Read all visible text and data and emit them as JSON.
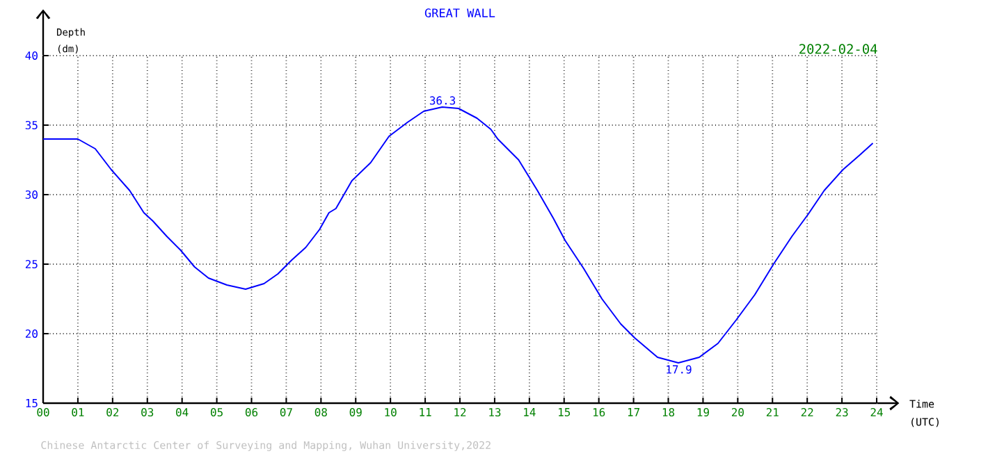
{
  "chart_data": {
    "type": "line",
    "title": "GREAT WALL",
    "xlabel": "Time (UTC)",
    "ylabel": "Depth (dm)",
    "x": [
      0,
      0.5,
      1,
      1.5,
      1.96,
      2.49,
      2.9,
      3.16,
      3.56,
      3.96,
      4.36,
      4.76,
      5.29,
      5.83,
      6.36,
      6.76,
      7.16,
      7.56,
      7.96,
      8.23,
      8.43,
      8.89,
      9.43,
      9.96,
      10.49,
      10.96,
      11.49,
      11.96,
      12.49,
      12.89,
      13.09,
      13.69,
      14.23,
      14.69,
      15.03,
      15.56,
      16.09,
      16.63,
      17.03,
      17.69,
      18.29,
      18.89,
      19.43,
      19.96,
      20.49,
      21.03,
      21.56,
      22.03,
      22.49,
      23.03,
      23.49,
      23.89
    ],
    "series": [
      {
        "color": "#0000ff",
        "values": [
          34.0,
          34.0,
          34.0,
          33.3,
          31.8,
          30.3,
          28.7,
          28.1,
          27.0,
          26.0,
          24.8,
          24.0,
          23.5,
          23.2,
          23.6,
          24.3,
          25.3,
          26.2,
          27.5,
          28.7,
          29.0,
          31.0,
          32.3,
          34.2,
          35.2,
          36.0,
          36.3,
          36.2,
          35.5,
          34.7,
          34.0,
          32.5,
          30.3,
          28.3,
          26.7,
          24.7,
          22.5,
          20.7,
          19.7,
          18.3,
          17.9,
          18.3,
          19.3,
          21.0,
          22.8,
          25.0,
          27.0,
          28.6,
          30.3,
          31.8,
          32.8,
          33.7
        ]
      }
    ],
    "xlim": [
      0,
      24
    ],
    "ylim": [
      15,
      40
    ],
    "xticks": [
      {
        "value": 0,
        "label": "00"
      },
      {
        "value": 1,
        "label": "01"
      },
      {
        "value": 2,
        "label": "02"
      },
      {
        "value": 3,
        "label": "03"
      },
      {
        "value": 4,
        "label": "04"
      },
      {
        "value": 5,
        "label": "05"
      },
      {
        "value": 6,
        "label": "06"
      },
      {
        "value": 7,
        "label": "07"
      },
      {
        "value": 8,
        "label": "08"
      },
      {
        "value": 9,
        "label": "09"
      },
      10,
      11,
      12,
      13,
      14,
      15,
      16,
      17,
      18,
      19,
      20,
      21,
      22,
      23,
      24
    ],
    "yticks": [
      15,
      20,
      25,
      30,
      35,
      40
    ],
    "grid": true,
    "marker": "none",
    "line_style": "solid",
    "annotations": [
      {
        "text": "36.3",
        "x": 11.5,
        "y": 36.3
      },
      {
        "text": "17.9",
        "x": 18.3,
        "y": 17.9
      },
      "2022-02-04",
      "Chinese Antarctic Center of Surveying and Mapping, Wuhan University,2022"
    ]
  }
}
